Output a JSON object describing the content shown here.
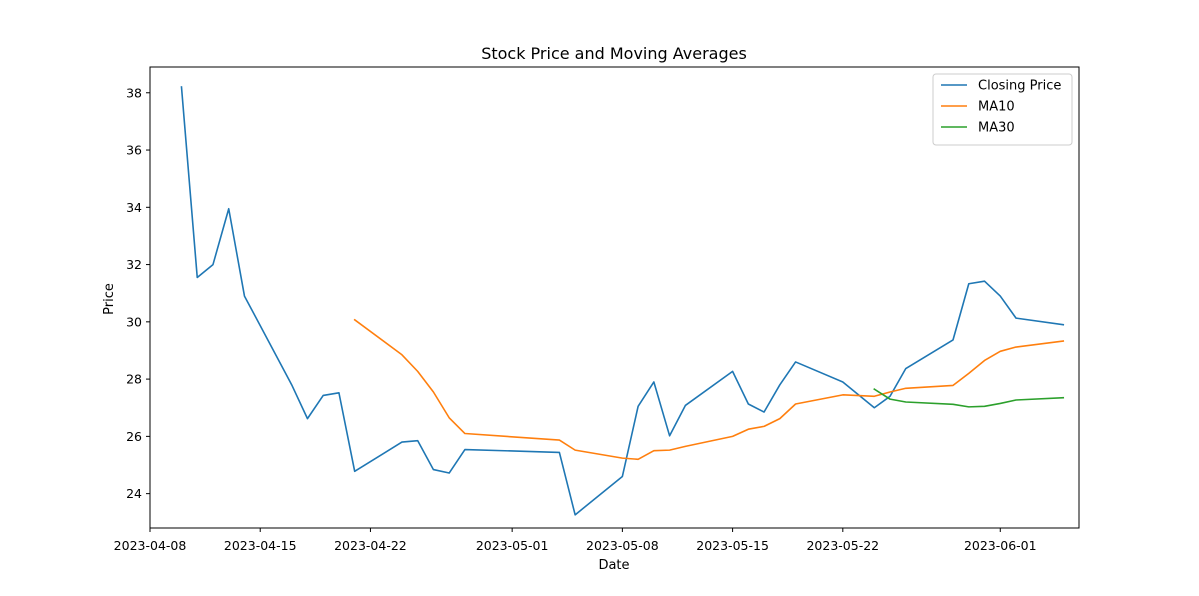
{
  "chart_data": {
    "type": "line",
    "title": "Stock Price and Moving Averages",
    "xlabel": "Date",
    "ylabel": "Price",
    "xlim": [
      "2023-04-08",
      "2023-06-06"
    ],
    "ylim": [
      22.8,
      38.9
    ],
    "x_ticks": [
      "2023-04-08",
      "2023-04-15",
      "2023-04-22",
      "2023-05-01",
      "2023-05-08",
      "2023-05-15",
      "2023-05-22",
      "2023-06-01"
    ],
    "y_ticks": [
      24,
      26,
      28,
      30,
      32,
      34,
      36,
      38
    ],
    "grid": false,
    "legend_position": "top-right",
    "series": [
      {
        "name": "Closing Price",
        "color": "#1f77b4",
        "points": [
          [
            "2023-04-10",
            38.2
          ],
          [
            "2023-04-11",
            31.55
          ],
          [
            "2023-04-12",
            32.0
          ],
          [
            "2023-04-13",
            33.95
          ],
          [
            "2023-04-14",
            30.9
          ],
          [
            "2023-04-17",
            27.8
          ],
          [
            "2023-04-18",
            26.62
          ],
          [
            "2023-04-19",
            27.43
          ],
          [
            "2023-04-20",
            27.52
          ],
          [
            "2023-04-21",
            24.78
          ],
          [
            "2023-04-24",
            25.8
          ],
          [
            "2023-04-25",
            25.85
          ],
          [
            "2023-04-26",
            24.84
          ],
          [
            "2023-04-27",
            24.72
          ],
          [
            "2023-04-28",
            25.54
          ],
          [
            "2023-05-04",
            25.44
          ],
          [
            "2023-05-05",
            23.26
          ],
          [
            "2023-05-08",
            24.6
          ],
          [
            "2023-05-09",
            27.05
          ],
          [
            "2023-05-10",
            27.9
          ],
          [
            "2023-05-11",
            26.02
          ],
          [
            "2023-05-12",
            27.08
          ],
          [
            "2023-05-15",
            28.27
          ],
          [
            "2023-05-16",
            27.13
          ],
          [
            "2023-05-17",
            26.85
          ],
          [
            "2023-05-18",
            27.8
          ],
          [
            "2023-05-19",
            28.6
          ],
          [
            "2023-05-22",
            27.9
          ],
          [
            "2023-05-24",
            27.0
          ],
          [
            "2023-05-25",
            27.4
          ],
          [
            "2023-05-26",
            28.37
          ],
          [
            "2023-05-29",
            29.37
          ],
          [
            "2023-05-30",
            31.33
          ],
          [
            "2023-05-31",
            31.42
          ],
          [
            "2023-06-01",
            30.9
          ],
          [
            "2023-06-02",
            30.13
          ],
          [
            "2023-06-05",
            29.9
          ]
        ]
      },
      {
        "name": "MA10",
        "color": "#ff7f0e",
        "points": [
          [
            "2023-04-21",
            30.07
          ],
          [
            "2023-04-24",
            28.85
          ],
          [
            "2023-04-25",
            28.27
          ],
          [
            "2023-04-26",
            27.55
          ],
          [
            "2023-04-27",
            26.65
          ],
          [
            "2023-04-28",
            26.1
          ],
          [
            "2023-05-04",
            25.87
          ],
          [
            "2023-05-05",
            25.52
          ],
          [
            "2023-05-08",
            25.24
          ],
          [
            "2023-05-09",
            25.2
          ],
          [
            "2023-05-10",
            25.5
          ],
          [
            "2023-05-11",
            25.52
          ],
          [
            "2023-05-12",
            25.65
          ],
          [
            "2023-05-15",
            26.0
          ],
          [
            "2023-05-16",
            26.25
          ],
          [
            "2023-05-17",
            26.35
          ],
          [
            "2023-05-18",
            26.62
          ],
          [
            "2023-05-19",
            27.13
          ],
          [
            "2023-05-22",
            27.45
          ],
          [
            "2023-05-24",
            27.4
          ],
          [
            "2023-05-25",
            27.55
          ],
          [
            "2023-05-26",
            27.68
          ],
          [
            "2023-05-29",
            27.78
          ],
          [
            "2023-05-30",
            28.2
          ],
          [
            "2023-05-31",
            28.65
          ],
          [
            "2023-06-01",
            28.97
          ],
          [
            "2023-06-02",
            29.12
          ],
          [
            "2023-06-05",
            29.33
          ]
        ]
      },
      {
        "name": "MA30",
        "color": "#2ca02c",
        "points": [
          [
            "2023-05-24",
            27.65
          ],
          [
            "2023-05-25",
            27.3
          ],
          [
            "2023-05-26",
            27.2
          ],
          [
            "2023-05-29",
            27.12
          ],
          [
            "2023-05-30",
            27.03
          ],
          [
            "2023-05-31",
            27.05
          ],
          [
            "2023-06-01",
            27.15
          ],
          [
            "2023-06-02",
            27.27
          ],
          [
            "2023-06-05",
            27.35
          ]
        ]
      }
    ]
  }
}
